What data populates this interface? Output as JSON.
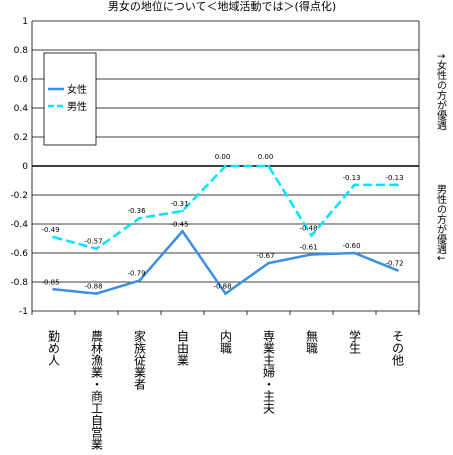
{
  "chart_data": {
    "type": "line",
    "title": "男女の地位について＜地域活動では＞(得点化)",
    "categories": [
      "勤め人",
      "農林漁業・商工自営業",
      "家族従業者",
      "自由業",
      "内職",
      "専業主婦・主夫",
      "無職",
      "学生",
      "その他"
    ],
    "series": [
      {
        "name": "女性",
        "color": "#3d8fe0",
        "dashed": false,
        "values": [
          -0.85,
          -0.88,
          -0.79,
          -0.45,
          -0.88,
          -0.67,
          -0.61,
          -0.6,
          -0.72
        ],
        "labels": [
          "-0.85",
          "-0.88",
          "-0.79",
          "-0.45",
          "-0.88",
          "-0.67",
          "-0.61",
          "-0.60",
          "-0.72"
        ]
      },
      {
        "name": "男性",
        "color": "#00e5ff",
        "dashed": true,
        "values": [
          -0.49,
          -0.57,
          -0.36,
          -0.31,
          0.0,
          0.0,
          -0.48,
          -0.13,
          -0.13
        ],
        "labels": [
          "-0.49",
          "-0.57",
          "-0.36",
          "-0.31",
          "0.00",
          "0.00",
          "-0.48",
          "-0.13",
          "-0.13"
        ]
      }
    ],
    "ylim": [
      -1,
      1
    ],
    "yticks": [
      1,
      0.8,
      0.6,
      0.4,
      0.2,
      0,
      -0.2,
      -0.4,
      -0.6,
      -0.8,
      -1
    ],
    "ytick_labels": [
      "1",
      "0.8",
      "0.6",
      "0.4",
      "0.2",
      "0",
      "-0.2",
      "-0.4",
      "-0.6",
      "-0.8",
      "-1"
    ],
    "grid": true,
    "legend_position": "top-left",
    "annotations": {
      "upper": "↑女性の方が優遇",
      "lower": "男性の方が優遇↓"
    }
  }
}
